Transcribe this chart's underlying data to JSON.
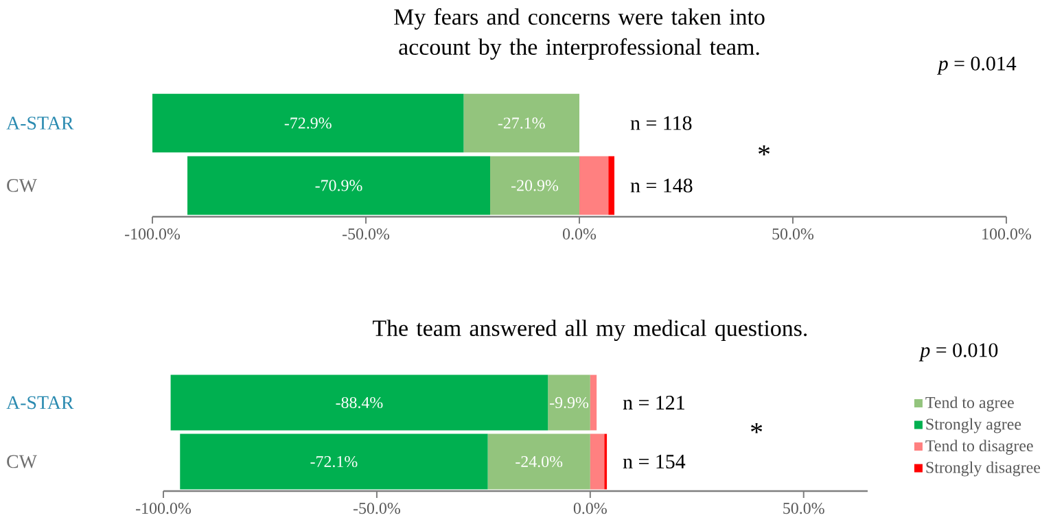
{
  "chart_data": [
    {
      "type": "bar",
      "orientation": "horizontal",
      "stacked": true,
      "title": "My fears and concerns were taken into account by the interprofessional team.",
      "categories": [
        "A-STAR",
        "CW"
      ],
      "series": [
        {
          "color": "#93c47d",
          "values": [
            -27.1,
            -20.9
          ],
          "value_labels": [
            "-27.1%",
            "-20.9%"
          ]
        },
        {
          "color": "#00b050",
          "values": [
            -72.9,
            -70.9
          ],
          "value_labels": [
            "-72.9%",
            "-70.9%"
          ]
        },
        {
          "color": "#ff8080",
          "values": [
            0,
            6.8
          ],
          "value_labels": [
            null,
            null
          ]
        },
        {
          "color": "#ff0000",
          "values": [
            0,
            1.4
          ],
          "value_labels": [
            null,
            null
          ]
        }
      ],
      "xlim": [
        -100,
        100
      ],
      "xticks": [
        {
          "value": -100,
          "label": "-100.0%"
        },
        {
          "value": -50,
          "label": "-50.0%"
        },
        {
          "value": 0,
          "label": "0.0%"
        },
        {
          "value": 50,
          "label": "50.0%"
        },
        {
          "value": 100,
          "label": "100.0%"
        }
      ],
      "annotations": [
        "*p* = 0.014",
        "n = 118",
        "n = 148",
        "*"
      ]
    },
    {
      "type": "bar",
      "orientation": "horizontal",
      "stacked": true,
      "title": "The team answered all my medical questions.",
      "categories": [
        "A-STAR",
        "CW"
      ],
      "series": [
        {
          "name": "Tend to agree",
          "color": "#93c47d",
          "values": [
            -9.9,
            -24.0
          ],
          "value_labels": [
            "-9.9%",
            "-24.0%"
          ]
        },
        {
          "name": "Strongly agree",
          "color": "#00b050",
          "values": [
            -88.4,
            -72.1
          ],
          "value_labels": [
            "-88.4%",
            "-72.1%"
          ]
        },
        {
          "name": "Tend to disagree",
          "color": "#ff8080",
          "values": [
            1.5,
            3.3
          ],
          "value_labels": [
            null,
            null
          ]
        },
        {
          "name": "Strongly disagree",
          "color": "#ff0000",
          "values": [
            0,
            0.6
          ],
          "value_labels": [
            null,
            null
          ]
        }
      ],
      "xlim": [
        -100,
        65
      ],
      "xticks": [
        {
          "value": -100,
          "label": "-100.0%"
        },
        {
          "value": -50,
          "label": "-50.0%"
        },
        {
          "value": 0,
          "label": "0.0%"
        },
        {
          "value": 50,
          "label": "50.0%"
        }
      ],
      "legend": "right",
      "annotations": [
        "*p* = 0.010",
        "n = 121",
        "n = 154",
        "*"
      ]
    }
  ]
}
